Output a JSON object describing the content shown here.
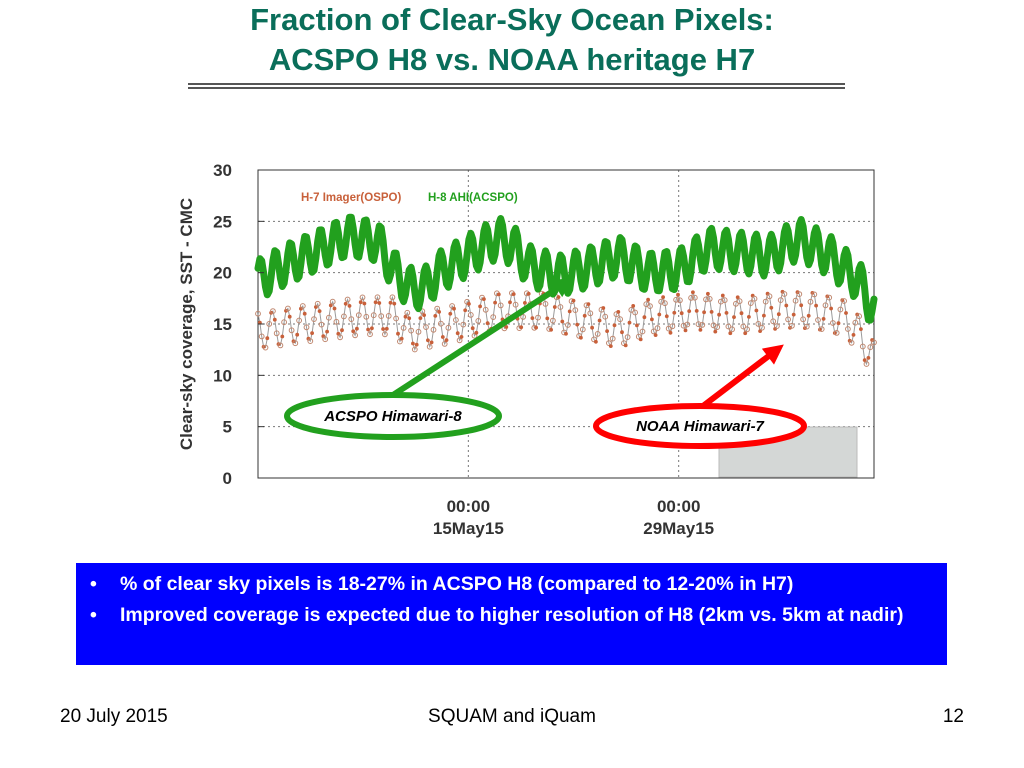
{
  "slide": {
    "title_line1": "Fraction of Clear-Sky Ocean Pixels:",
    "title_line2": "ACSPO H8 vs. NOAA heritage H7",
    "bullets": [
      "% of clear sky pixels is 18-27% in ACSPO H8 (compared to 12-20% in H7)",
      "Improved coverage is expected due to higher resolution of H8  (2km vs. 5km at nadir)"
    ],
    "footer_left": "20 July 2015",
    "footer_center": "SQUAM and iQuam",
    "footer_right": "12"
  },
  "chart_data": {
    "type": "line",
    "ylabel": "Clear-sky coverage,  SST - CMC",
    "ylim": [
      0,
      30
    ],
    "y_ticks": [
      0,
      5,
      10,
      15,
      20,
      25,
      30
    ],
    "x_range_days": [
      0,
      41
    ],
    "x_ticks": [
      {
        "day": 14,
        "line1": "00:00",
        "line2": "15May15"
      },
      {
        "day": 28,
        "line1": "00:00",
        "line2": "29May15"
      }
    ],
    "grid": true,
    "legend_position": "top-left",
    "series": [
      {
        "name": "H-7 Imager(OSPO)",
        "color": "#c8603a",
        "baseline": [
          [
            0,
            14.3
          ],
          [
            3,
            15.0
          ],
          [
            7,
            15.8
          ],
          [
            9,
            15.8
          ],
          [
            10,
            14.2
          ],
          [
            13,
            15.0
          ],
          [
            16,
            16.3
          ],
          [
            19,
            16.3
          ],
          [
            22,
            15.2
          ],
          [
            24,
            14.4
          ],
          [
            26,
            15.6
          ],
          [
            29,
            16.3
          ],
          [
            32,
            15.8
          ],
          [
            35,
            16.4
          ],
          [
            37,
            16.3
          ],
          [
            39,
            15.6
          ],
          [
            40,
            14.1
          ],
          [
            41,
            11.5
          ]
        ],
        "daily_amplitude": 1.8
      },
      {
        "name": "H-8 AHI(ACSPO)",
        "color": "#22a01e",
        "baseline": [
          [
            0,
            19.3
          ],
          [
            2,
            20.9
          ],
          [
            4,
            22.2
          ],
          [
            6,
            23.6
          ],
          [
            8,
            23.0
          ],
          [
            9,
            20.3
          ],
          [
            10,
            18.6
          ],
          [
            11,
            18.4
          ],
          [
            12,
            20.0
          ],
          [
            14,
            21.7
          ],
          [
            16,
            23.4
          ],
          [
            17,
            22.6
          ],
          [
            18,
            20.7
          ],
          [
            20,
            19.7
          ],
          [
            22,
            20.5
          ],
          [
            24,
            21.6
          ],
          [
            26,
            20.0
          ],
          [
            28,
            20.3
          ],
          [
            30,
            22.4
          ],
          [
            32,
            22.0
          ],
          [
            34,
            21.6
          ],
          [
            36,
            23.3
          ],
          [
            38,
            21.7
          ],
          [
            40,
            19.2
          ],
          [
            41,
            16.3
          ]
        ],
        "daily_amplitude": 2.0
      }
    ],
    "annotations": [
      {
        "label": "ACSPO Himawari-8",
        "color": "#22a01e",
        "points_to_day": 21,
        "points_to_value": 19.5
      },
      {
        "label": "NOAA Himawari-7",
        "color": "#ff0000",
        "points_to_day": 35,
        "points_to_value": 13.0
      }
    ]
  }
}
